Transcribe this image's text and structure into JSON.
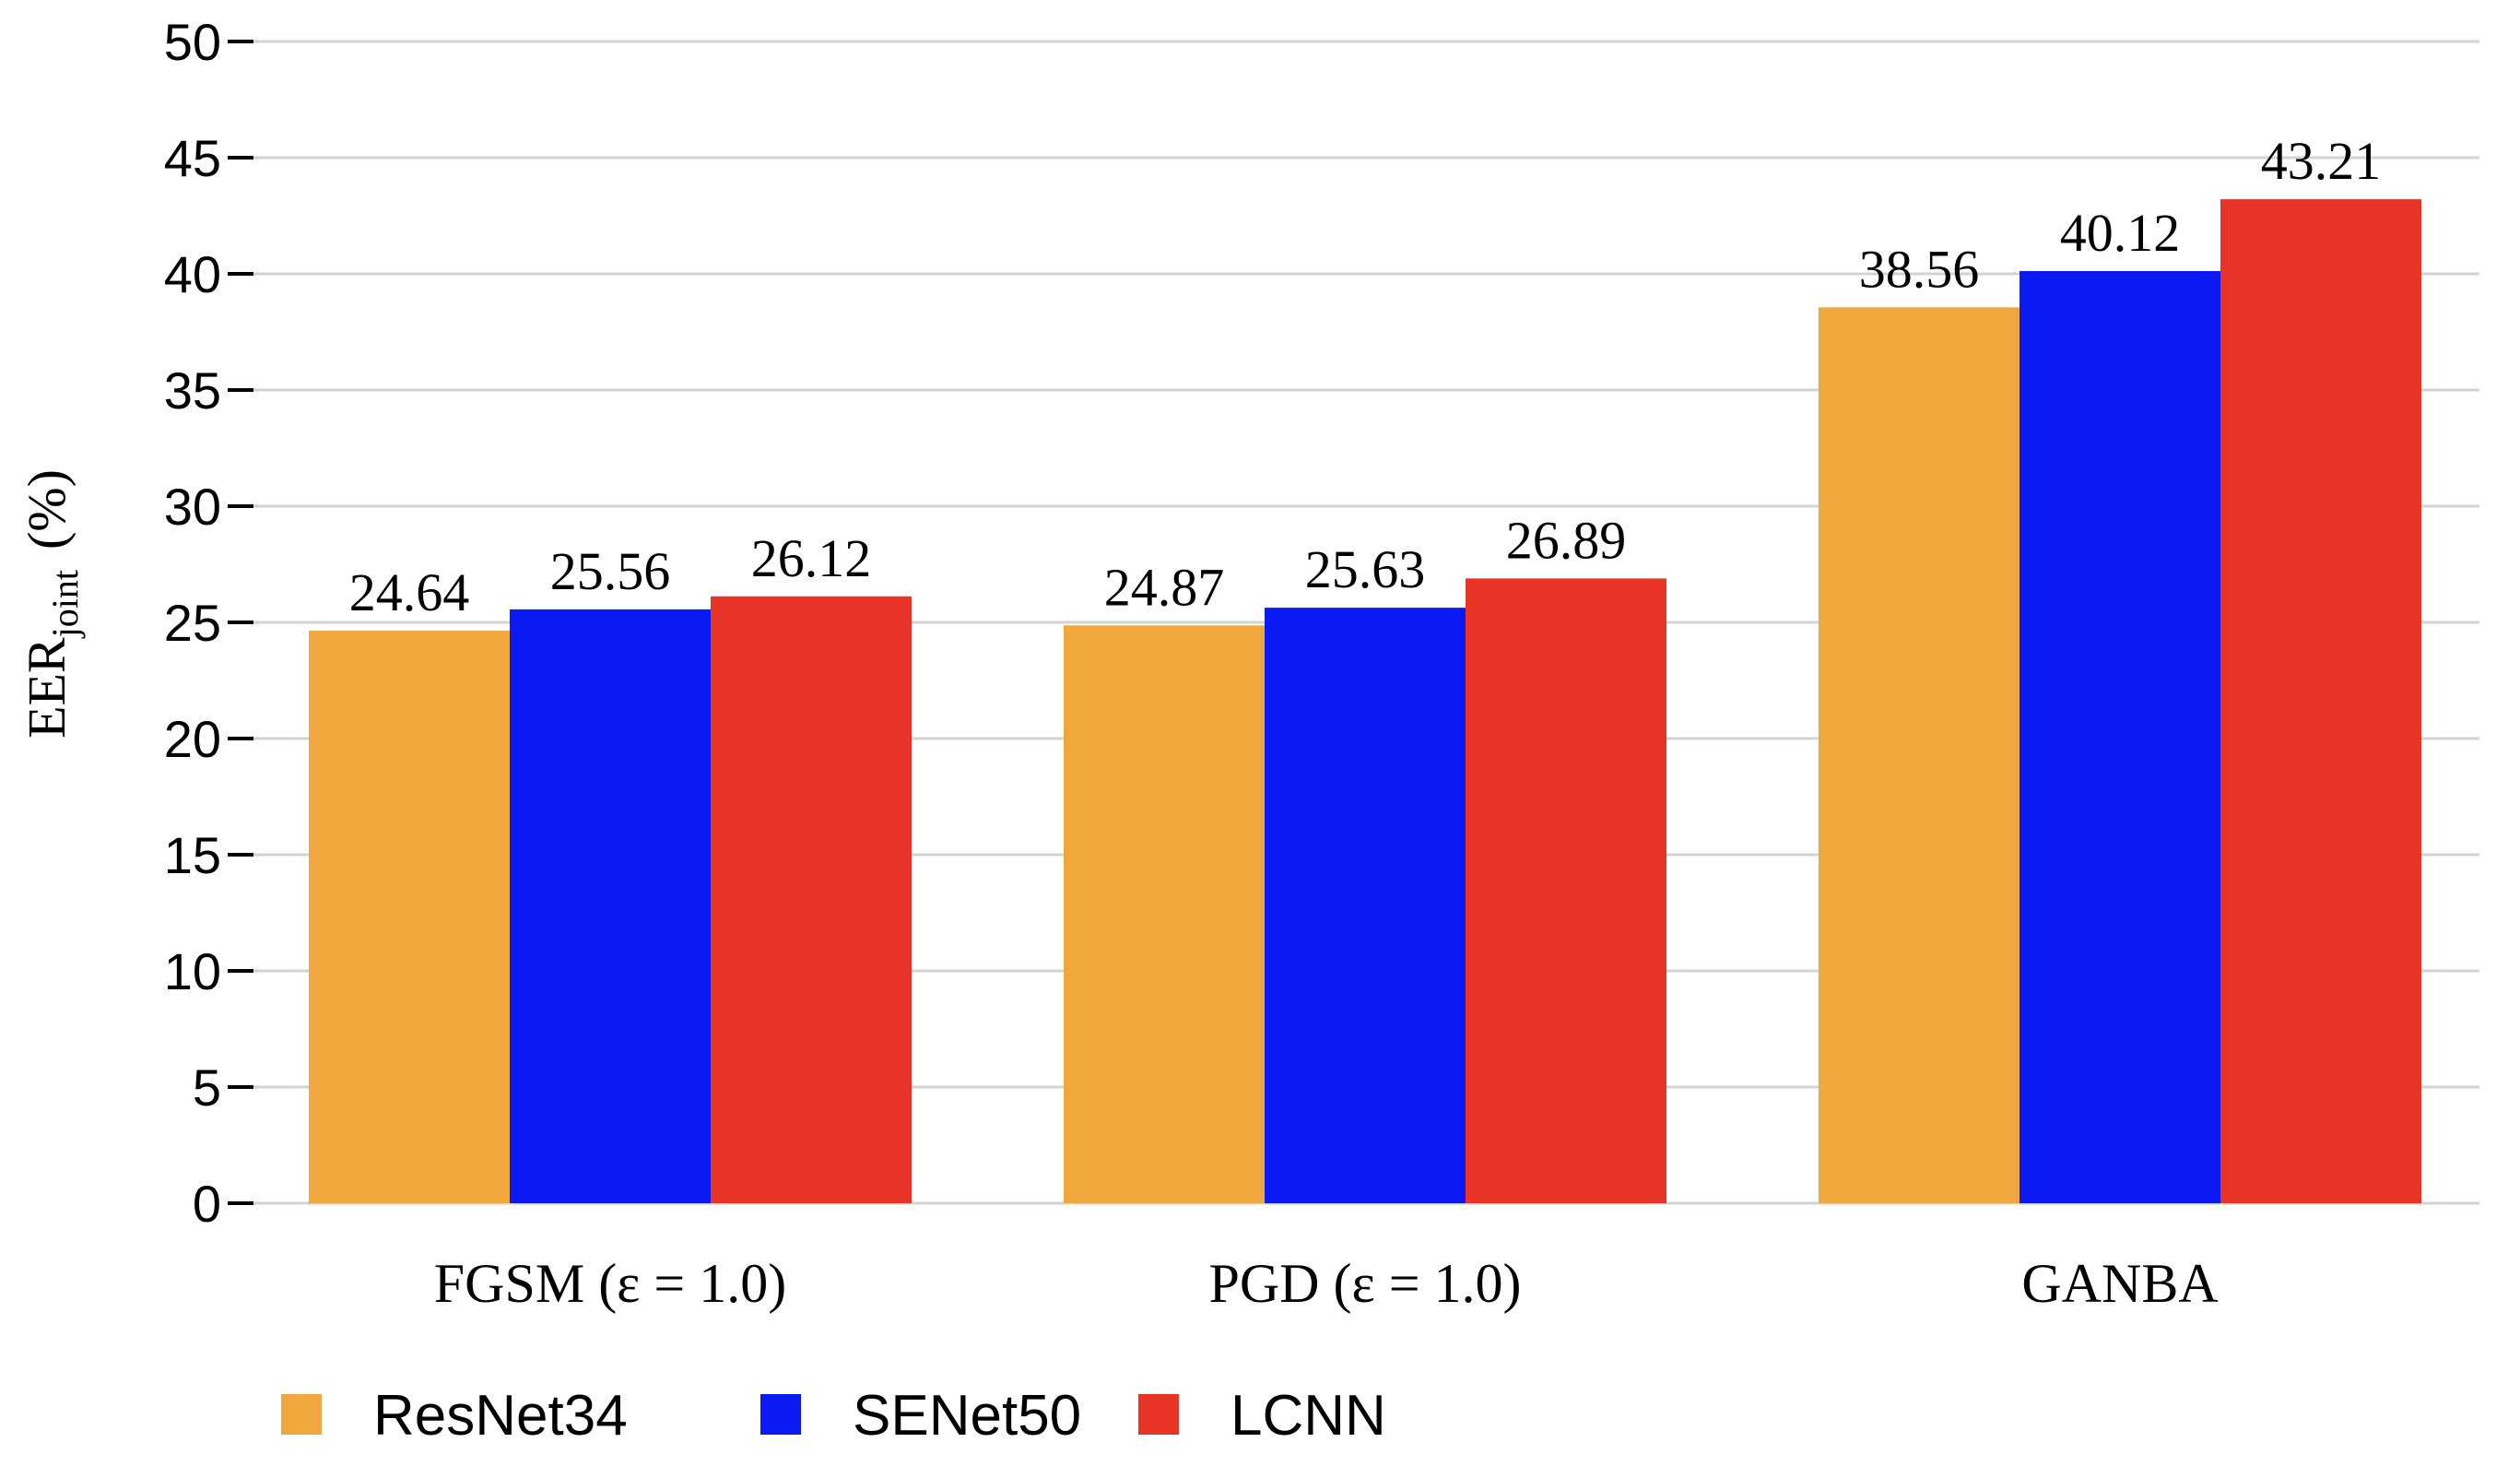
{
  "chart_data": {
    "type": "bar",
    "title": "",
    "xlabel": "",
    "ylabel": {
      "main": "EER",
      "subscript": "joint",
      "unit": "(%)"
    },
    "ylim": [
      0,
      50
    ],
    "yticks": [
      0,
      5,
      10,
      15,
      20,
      25,
      30,
      35,
      40,
      45,
      50
    ],
    "grid": true,
    "legend_position": "bottom-left",
    "categories": [
      {
        "name": "FGSM",
        "param": "ε = 1.0"
      },
      {
        "name": "PGD",
        "param": "ε = 1.0"
      },
      {
        "name": "GANBA",
        "param": ""
      }
    ],
    "series": [
      {
        "name": "ResNet34",
        "color": "#F0A83E",
        "values": [
          24.64,
          24.87,
          38.56
        ],
        "labels": [
          "24.64",
          "24.87",
          "38.56"
        ]
      },
      {
        "name": "SENet50",
        "color": "#0B1AF2",
        "values": [
          25.56,
          25.63,
          40.12
        ],
        "labels": [
          "25.56",
          "25.63",
          "40.12"
        ]
      },
      {
        "name": "LCNN",
        "color": "#E83427",
        "values": [
          26.12,
          26.89,
          43.21
        ],
        "labels": [
          "26.12",
          "26.89",
          "43.21"
        ]
      }
    ],
    "colors": {
      "grid": "#D3D3D3",
      "axis_text": "#000000"
    }
  }
}
